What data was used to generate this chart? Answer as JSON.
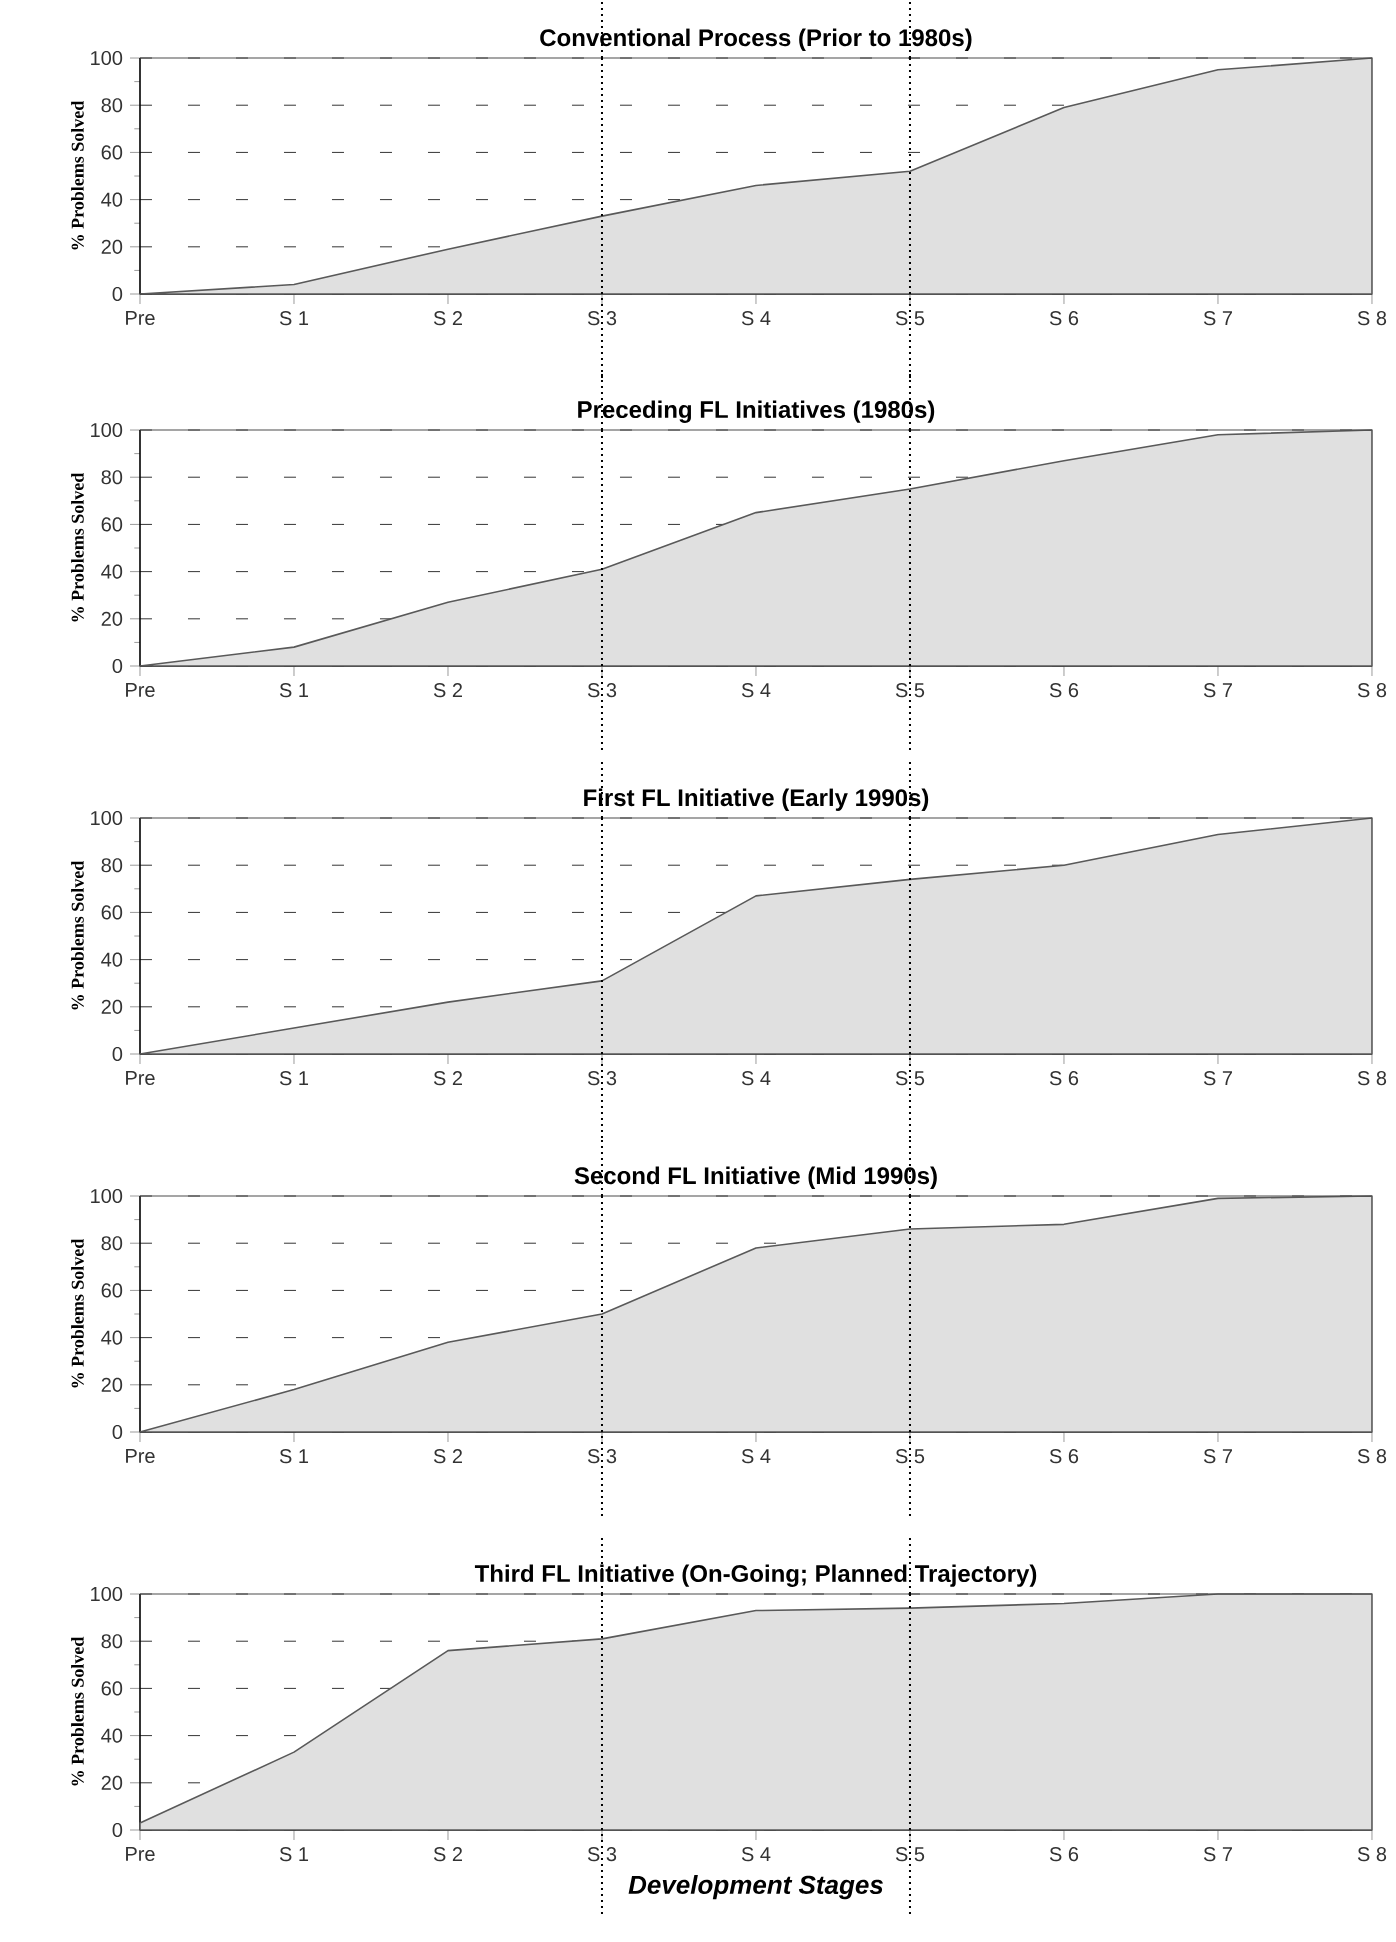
{
  "chart_data": [
    {
      "type": "area",
      "title": "Conventional Process (Prior to 1980s)",
      "ylabel": "% Problems Solved",
      "categories": [
        "Pre",
        "S 1",
        "S 2",
        "S 3",
        "S 4",
        "S 5",
        "S 6",
        "S 7",
        "S 8"
      ],
      "values": [
        0,
        4,
        19,
        33,
        46,
        52,
        79,
        95,
        100
      ],
      "color": "#e0e0e0",
      "ylim": [
        0,
        100
      ],
      "yticks": [
        0,
        20,
        40,
        60,
        80,
        100
      ],
      "grid": "y",
      "ref_lines": [
        {
          "axis": "x",
          "value": "S 3",
          "line_style": "dotted"
        },
        {
          "axis": "x",
          "value": "S 5",
          "line_style": "dotted"
        }
      ]
    },
    {
      "type": "area",
      "title": "Preceding FL Initiatives (1980s)",
      "ylabel": "% Problems Solved",
      "categories": [
        "Pre",
        "S 1",
        "S 2",
        "S 3",
        "S 4",
        "S 5",
        "S 6",
        "S 7",
        "S 8"
      ],
      "values": [
        0,
        8,
        27,
        41,
        65,
        75,
        87,
        98,
        100
      ],
      "color": "#e0e0e0",
      "ylim": [
        0,
        100
      ],
      "yticks": [
        0,
        20,
        40,
        60,
        80,
        100
      ],
      "grid": "y",
      "ref_lines": [
        {
          "axis": "x",
          "value": "S 3",
          "line_style": "dotted"
        },
        {
          "axis": "x",
          "value": "S 5",
          "line_style": "dotted"
        }
      ]
    },
    {
      "type": "area",
      "title": "First FL Initiative (Early 1990s)",
      "ylabel": "% Problems Solved",
      "categories": [
        "Pre",
        "S 1",
        "S 2",
        "S 3",
        "S 4",
        "S 5",
        "S 6",
        "S 7",
        "S 8"
      ],
      "values": [
        0,
        11,
        22,
        31,
        67,
        74,
        80,
        93,
        100
      ],
      "color": "#e0e0e0",
      "ylim": [
        0,
        100
      ],
      "yticks": [
        0,
        20,
        40,
        60,
        80,
        100
      ],
      "grid": "y",
      "ref_lines": [
        {
          "axis": "x",
          "value": "S 3",
          "line_style": "dotted"
        },
        {
          "axis": "x",
          "value": "S 5",
          "line_style": "dotted"
        }
      ]
    },
    {
      "type": "area",
      "title": "Second FL Initiative (Mid 1990s)",
      "ylabel": "% Problems Solved",
      "categories": [
        "Pre",
        "S 1",
        "S 2",
        "S 3",
        "S 4",
        "S 5",
        "S 6",
        "S 7",
        "S 8"
      ],
      "values": [
        0,
        18,
        38,
        50,
        78,
        86,
        88,
        99,
        100
      ],
      "color": "#e0e0e0",
      "ylim": [
        0,
        100
      ],
      "yticks": [
        0,
        20,
        40,
        60,
        80,
        100
      ],
      "grid": "y",
      "ref_lines": [
        {
          "axis": "x",
          "value": "S 3",
          "line_style": "dotted"
        },
        {
          "axis": "x",
          "value": "S 5",
          "line_style": "dotted"
        }
      ]
    },
    {
      "type": "area",
      "title": "Third FL Initiative (On-Going; Planned Trajectory)",
      "xlabel": "Development Stages",
      "ylabel": "% Problems Solved",
      "categories": [
        "Pre",
        "S 1",
        "S 2",
        "S 3",
        "S 4",
        "S 5",
        "S 6",
        "S 7",
        "S 8"
      ],
      "values": [
        3,
        33,
        76,
        81,
        93,
        94,
        96,
        100,
        100
      ],
      "color": "#e0e0e0",
      "ylim": [
        0,
        100
      ],
      "yticks": [
        0,
        20,
        40,
        60,
        80,
        100
      ],
      "grid": "y",
      "ref_lines": [
        {
          "axis": "x",
          "value": "S 3",
          "line_style": "dotted"
        },
        {
          "axis": "x",
          "value": "S 5",
          "line_style": "dotted"
        }
      ]
    }
  ]
}
